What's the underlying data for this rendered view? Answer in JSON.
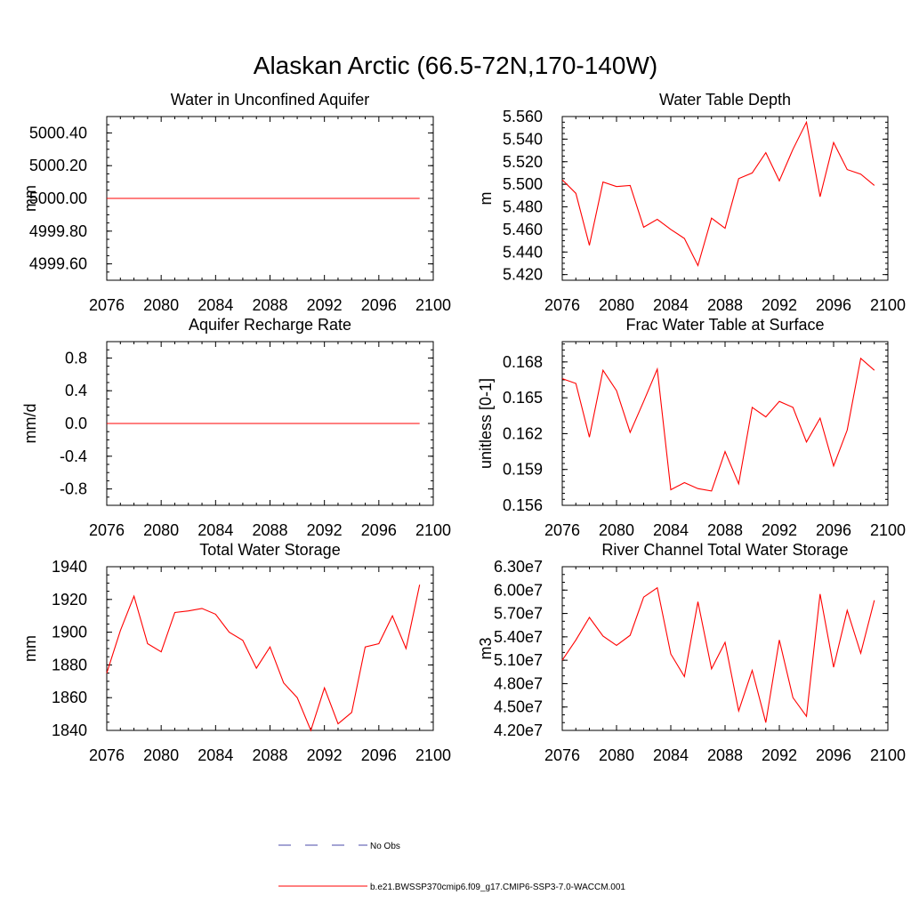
{
  "figure": {
    "title": "Alaskan Arctic (66.5-72N,170-140W)"
  },
  "legend": {
    "placement": "bottom-center",
    "entries": [
      {
        "label": "No Obs",
        "color": "#4a4aa8",
        "dash": "dashed"
      },
      {
        "label": "b.e21.BWSSP370cmip6.f09_g17.CMIP6-SSP3-7.0-WACCM.001",
        "color": "#ff0000",
        "dash": "solid"
      }
    ]
  },
  "chart_data": [
    {
      "type": "line",
      "title": "Water in Unconfined Aquifer",
      "xlabel": "",
      "ylabel": "mm",
      "xlim": [
        2076,
        2100
      ],
      "ylim": [
        4999.5,
        5000.5
      ],
      "xticks": [
        2076,
        2080,
        2084,
        2088,
        2092,
        2096,
        2100
      ],
      "xtick_labels": [
        "2076",
        "2080",
        "2084",
        "2088",
        "2092",
        "2096",
        "2100"
      ],
      "yticks": [
        4999.6,
        4999.8,
        5000.0,
        5000.2,
        5000.4
      ],
      "ytick_labels": [
        "4999.60",
        "4999.80",
        "5000.00",
        "5000.20",
        "5000.40"
      ],
      "yminor": 0.05,
      "grid": false,
      "series": [
        {
          "color": "#ff0000",
          "x": [
            2076,
            2077,
            2078,
            2079,
            2080,
            2081,
            2082,
            2083,
            2084,
            2085,
            2086,
            2087,
            2088,
            2089,
            2090,
            2091,
            2092,
            2093,
            2094,
            2095,
            2096,
            2097,
            2098,
            2099
          ],
          "values": [
            5000,
            5000,
            5000,
            5000,
            5000,
            5000,
            5000,
            5000,
            5000,
            5000,
            5000,
            5000,
            5000,
            5000,
            5000,
            5000,
            5000,
            5000,
            5000,
            5000,
            5000,
            5000,
            5000,
            5000
          ]
        }
      ]
    },
    {
      "type": "line",
      "title": "Water Table Depth",
      "xlabel": "",
      "ylabel": "m",
      "xlim": [
        2076,
        2100
      ],
      "ylim": [
        5.415,
        5.56
      ],
      "xticks": [
        2076,
        2080,
        2084,
        2088,
        2092,
        2096,
        2100
      ],
      "xtick_labels": [
        "2076",
        "2080",
        "2084",
        "2088",
        "2092",
        "2096",
        "2100"
      ],
      "yticks": [
        5.42,
        5.44,
        5.46,
        5.48,
        5.5,
        5.52,
        5.54,
        5.56
      ],
      "ytick_labels": [
        "5.420",
        "5.440",
        "5.460",
        "5.480",
        "5.500",
        "5.520",
        "5.540",
        "5.560"
      ],
      "yminor": 0.005,
      "grid": false,
      "series": [
        {
          "color": "#ff0000",
          "x": [
            2076,
            2077,
            2078,
            2079,
            2080,
            2081,
            2082,
            2083,
            2084,
            2085,
            2086,
            2087,
            2088,
            2089,
            2090,
            2091,
            2092,
            2093,
            2094,
            2095,
            2096,
            2097,
            2098,
            2099
          ],
          "values": [
            5.504,
            5.492,
            5.446,
            5.502,
            5.498,
            5.499,
            5.462,
            5.469,
            5.46,
            5.452,
            5.428,
            5.47,
            5.461,
            5.505,
            5.51,
            5.528,
            5.503,
            5.531,
            5.555,
            5.489,
            5.537,
            5.513,
            5.509,
            5.499
          ]
        }
      ]
    },
    {
      "type": "line",
      "title": "Aquifer Recharge Rate",
      "xlabel": "",
      "ylabel": "mm/d",
      "xlim": [
        2076,
        2100
      ],
      "ylim": [
        -1.0,
        1.0
      ],
      "xticks": [
        2076,
        2080,
        2084,
        2088,
        2092,
        2096,
        2100
      ],
      "xtick_labels": [
        "2076",
        "2080",
        "2084",
        "2088",
        "2092",
        "2096",
        "2100"
      ],
      "yticks": [
        -0.8,
        -0.4,
        0.0,
        0.4,
        0.8
      ],
      "ytick_labels": [
        "-0.8",
        "-0.4",
        "0.0",
        "0.4",
        "0.8"
      ],
      "yminor": 0.1,
      "grid": false,
      "series": [
        {
          "color": "#ff0000",
          "x": [
            2076,
            2077,
            2078,
            2079,
            2080,
            2081,
            2082,
            2083,
            2084,
            2085,
            2086,
            2087,
            2088,
            2089,
            2090,
            2091,
            2092,
            2093,
            2094,
            2095,
            2096,
            2097,
            2098,
            2099
          ],
          "values": [
            0,
            0,
            0,
            0,
            0,
            0,
            0,
            0,
            0,
            0,
            0,
            0,
            0,
            0,
            0,
            0,
            0,
            0,
            0,
            0,
            0,
            0,
            0,
            0
          ]
        }
      ]
    },
    {
      "type": "line",
      "title": "Frac Water Table at Surface",
      "xlabel": "",
      "ylabel": "unitless [0-1]",
      "xlim": [
        2076,
        2100
      ],
      "ylim": [
        0.156,
        0.1697
      ],
      "xticks": [
        2076,
        2080,
        2084,
        2088,
        2092,
        2096,
        2100
      ],
      "xtick_labels": [
        "2076",
        "2080",
        "2084",
        "2088",
        "2092",
        "2096",
        "2100"
      ],
      "yticks": [
        0.156,
        0.159,
        0.162,
        0.165,
        0.168
      ],
      "ytick_labels": [
        "0.156",
        "0.159",
        "0.162",
        "0.165",
        "0.168"
      ],
      "yminor": 0.0005,
      "grid": false,
      "series": [
        {
          "color": "#ff0000",
          "x": [
            2076,
            2077,
            2078,
            2079,
            2080,
            2081,
            2082,
            2083,
            2084,
            2085,
            2086,
            2087,
            2088,
            2089,
            2090,
            2091,
            2092,
            2093,
            2094,
            2095,
            2096,
            2097,
            2098,
            2099
          ],
          "values": [
            0.1666,
            0.1662,
            0.1617,
            0.1673,
            0.1656,
            0.1621,
            0.1647,
            0.1674,
            0.1573,
            0.1579,
            0.1574,
            0.1572,
            0.1605,
            0.1578,
            0.1642,
            0.1634,
            0.1647,
            0.1642,
            0.1613,
            0.1633,
            0.1593,
            0.1623,
            0.1683,
            0.1673
          ]
        }
      ]
    },
    {
      "type": "line",
      "title": "Total Water Storage",
      "xlabel": "",
      "ylabel": "mm",
      "xlim": [
        2076,
        2100
      ],
      "ylim": [
        1840,
        1940
      ],
      "xticks": [
        2076,
        2080,
        2084,
        2088,
        2092,
        2096,
        2100
      ],
      "xtick_labels": [
        "2076",
        "2080",
        "2084",
        "2088",
        "2092",
        "2096",
        "2100"
      ],
      "yticks": [
        1840,
        1860,
        1880,
        1900,
        1920,
        1940
      ],
      "ytick_labels": [
        "1840",
        "1860",
        "1880",
        "1900",
        "1920",
        "1940"
      ],
      "yminor": 5,
      "grid": false,
      "series": [
        {
          "color": "#ff0000",
          "x": [
            2076,
            2077,
            2078,
            2079,
            2080,
            2081,
            2082,
            2083,
            2084,
            2085,
            2086,
            2087,
            2088,
            2089,
            2090,
            2091,
            2092,
            2093,
            2094,
            2095,
            2096,
            2097,
            2098,
            2099
          ],
          "values": [
            1875,
            1901,
            1922,
            1893,
            1888,
            1912,
            1913,
            1914.5,
            1911,
            1900,
            1895,
            1878,
            1891,
            1869,
            1860,
            1840,
            1866,
            1844,
            1851,
            1891,
            1893,
            1910,
            1890,
            1929
          ]
        }
      ]
    },
    {
      "type": "line",
      "title": "River Channel Total Water Storage",
      "xlabel": "",
      "ylabel": "m3",
      "xlim": [
        2076,
        2100
      ],
      "ylim": [
        42000000,
        63000000
      ],
      "xticks": [
        2076,
        2080,
        2084,
        2088,
        2092,
        2096,
        2100
      ],
      "xtick_labels": [
        "2076",
        "2080",
        "2084",
        "2088",
        "2092",
        "2096",
        "2100"
      ],
      "yticks": [
        42000000,
        45000000,
        48000000,
        51000000,
        54000000,
        57000000,
        60000000,
        63000000
      ],
      "ytick_labels": [
        "4.20e7",
        "4.50e7",
        "4.80e7",
        "5.10e7",
        "5.40e7",
        "5.70e7",
        "6.00e7",
        "6.30e7"
      ],
      "yminor": 1000000,
      "grid": false,
      "series": [
        {
          "color": "#ff0000",
          "x": [
            2076,
            2077,
            2078,
            2079,
            2080,
            2081,
            2082,
            2083,
            2084,
            2085,
            2086,
            2087,
            2088,
            2089,
            2090,
            2091,
            2092,
            2093,
            2094,
            2095,
            2096,
            2097,
            2098,
            2099
          ],
          "values": [
            51000000,
            53600000,
            56500000,
            54100000,
            52900000,
            54200000,
            59100000,
            60300000,
            51800000,
            48900000,
            58500000,
            49900000,
            53300000,
            44500000,
            49700000,
            43000000,
            53600000,
            46200000,
            43800000,
            59500000,
            50100000,
            57400000,
            51900000,
            58700000
          ]
        }
      ]
    }
  ]
}
